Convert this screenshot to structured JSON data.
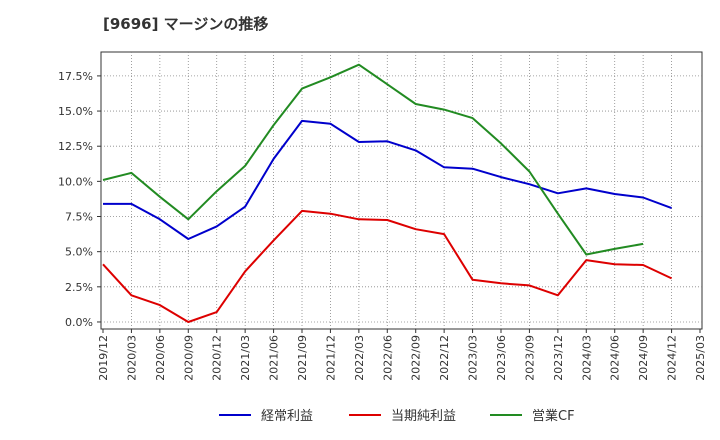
{
  "chart_data": {
    "type": "line",
    "title": "[9696]  マージンの推移",
    "x": [
      "2019/12",
      "2020/03",
      "2020/06",
      "2020/09",
      "2020/12",
      "2021/03",
      "2021/06",
      "2021/09",
      "2021/12",
      "2022/03",
      "2022/06",
      "2022/09",
      "2022/12",
      "2023/03",
      "2023/06",
      "2023/09",
      "2023/12",
      "2024/03",
      "2024/06",
      "2024/09",
      "2024/12",
      "2025/03"
    ],
    "ylim": [
      -0.5,
      19.2
    ],
    "yticks": [
      0,
      2.5,
      5,
      7.5,
      10,
      12.5,
      15,
      17.5
    ],
    "ytick_labels": [
      "0.0%",
      "2.5%",
      "5.0%",
      "7.5%",
      "10.0%",
      "12.5%",
      "15.0%",
      "17.5%"
    ],
    "grid": true,
    "legend_position": "bottom",
    "series": [
      {
        "name": "経常利益",
        "color": "#0000cc",
        "values": [
          8.4,
          8.4,
          7.3,
          5.9,
          6.8,
          8.2,
          11.6,
          14.3,
          14.1,
          12.8,
          12.85,
          12.2,
          11.0,
          10.9,
          10.3,
          9.8,
          9.15,
          9.5,
          9.1,
          8.85,
          8.1,
          null
        ]
      },
      {
        "name": "当期純利益",
        "color": "#dd0000",
        "values": [
          4.1,
          1.9,
          1.2,
          0.0,
          0.7,
          3.6,
          5.8,
          7.9,
          7.7,
          7.3,
          7.25,
          6.6,
          6.25,
          3.0,
          2.75,
          2.6,
          1.9,
          4.4,
          4.1,
          4.05,
          3.1,
          null
        ]
      },
      {
        "name": "営業CF",
        "color": "#228b22",
        "values": [
          10.1,
          10.6,
          8.9,
          7.3,
          9.3,
          11.1,
          14.0,
          16.6,
          17.4,
          18.3,
          16.9,
          15.5,
          15.1,
          14.5,
          12.7,
          10.7,
          7.7,
          4.8,
          5.2,
          5.55,
          null,
          null
        ]
      }
    ]
  }
}
